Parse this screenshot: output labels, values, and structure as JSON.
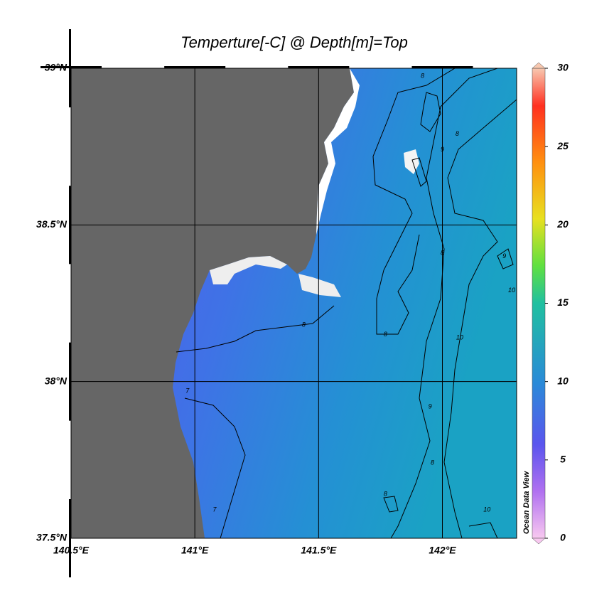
{
  "map": {
    "title": "Temperture[-C] @ Depth[m]=Top",
    "xlim": [
      140.5,
      142.3
    ],
    "ylim": [
      37.5,
      39
    ],
    "xticks": [
      {
        "value": 140.5,
        "label": "140.5°E"
      },
      {
        "value": 141,
        "label": "141°E"
      },
      {
        "value": 141.5,
        "label": "141.5°E"
      },
      {
        "value": 142,
        "label": "142°E"
      }
    ],
    "yticks": [
      {
        "value": 37.5,
        "label": "37.5°N"
      },
      {
        "value": 38,
        "label": "38°N"
      },
      {
        "value": 38.5,
        "label": "38.5°N"
      },
      {
        "value": 39,
        "label": "39°N"
      }
    ],
    "colorbar": {
      "lim": [
        0,
        30
      ],
      "ticks": [
        0,
        5,
        10,
        15,
        20,
        25,
        30
      ],
      "label": "Ocean Data View"
    },
    "contour_labels": [
      {
        "label": "8",
        "lon": 141.92,
        "lat": 38.975
      },
      {
        "label": "8",
        "lon": 142.06,
        "lat": 38.79
      },
      {
        "label": "9",
        "lon": 142.0,
        "lat": 38.74
      },
      {
        "label": "8",
        "lon": 141.44,
        "lat": 38.18
      },
      {
        "label": "8",
        "lon": 141.77,
        "lat": 38.15
      },
      {
        "label": "8",
        "lon": 142.0,
        "lat": 38.41
      },
      {
        "label": "10",
        "lon": 142.07,
        "lat": 38.14
      },
      {
        "label": "9",
        "lon": 142.25,
        "lat": 38.4
      },
      {
        "label": "10",
        "lon": 142.28,
        "lat": 38.29
      },
      {
        "label": "9",
        "lon": 141.95,
        "lat": 37.92
      },
      {
        "label": "8",
        "lon": 141.96,
        "lat": 37.74
      },
      {
        "label": "8",
        "lon": 141.77,
        "lat": 37.64
      },
      {
        "label": "10",
        "lon": 142.18,
        "lat": 37.59
      },
      {
        "label": "7",
        "lon": 140.97,
        "lat": 37.97
      },
      {
        "label": "7",
        "lon": 141.08,
        "lat": 37.59
      }
    ]
  }
}
